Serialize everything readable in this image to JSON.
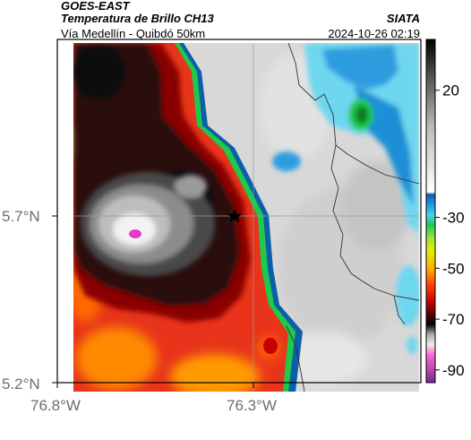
{
  "header": {
    "satellite": "GOES-EAST",
    "product": "Temperatura de Brillo CH13",
    "route": "Vía Medellín - Quibdó 50km",
    "organization": "SIATA",
    "timestamp": "2024-10-26 02:19"
  },
  "axes": {
    "lat_ticks": [
      {
        "label": "5.7°N",
        "value": 5.7
      },
      {
        "label": "5.2°N",
        "value": 5.2
      }
    ],
    "lon_ticks": [
      {
        "label": "76.8°W",
        "value": -76.8
      },
      {
        "label": "76.3°W",
        "value": -76.3
      }
    ]
  },
  "colorbar": {
    "tick_labels": [
      {
        "label": "20",
        "value": 20
      },
      {
        "label": "-30",
        "value": -30
      },
      {
        "label": "-50",
        "value": -50
      },
      {
        "label": "-70",
        "value": -70
      },
      {
        "label": "-90",
        "value": -90
      }
    ],
    "range": [
      -95,
      40
    ],
    "stops": [
      {
        "value": 40,
        "color": "#000000"
      },
      {
        "value": 25,
        "color": "#555555"
      },
      {
        "value": 5,
        "color": "#bdbdbd"
      },
      {
        "value": -20,
        "color": "#ffffff"
      },
      {
        "value": -21,
        "color": "#0b5fa8"
      },
      {
        "value": -25,
        "color": "#1f9be0"
      },
      {
        "value": -29,
        "color": "#45d3ef"
      },
      {
        "value": -33,
        "color": "#1ec94b"
      },
      {
        "value": -38,
        "color": "#9be33c"
      },
      {
        "value": -43,
        "color": "#e3f000"
      },
      {
        "value": -50,
        "color": "#ffb000"
      },
      {
        "value": -57,
        "color": "#ff3a00"
      },
      {
        "value": -63,
        "color": "#c80000"
      },
      {
        "value": -68,
        "color": "#5a0000"
      },
      {
        "value": -72,
        "color": "#000000"
      },
      {
        "value": -76,
        "color": "#aaaaaa"
      },
      {
        "value": -80,
        "color": "#eeeeee"
      },
      {
        "value": -84,
        "color": "#ff66d4"
      },
      {
        "value": -95,
        "color": "#7a2a8e"
      }
    ]
  },
  "map": {
    "marker": "star-icon",
    "colors": {
      "clear": "#dcdcdc",
      "warm_red": "#e8341a",
      "cold_black": "#1a0c08",
      "coldest_pink": "#e43ad0",
      "cold_gray": "#bebebe"
    }
  }
}
